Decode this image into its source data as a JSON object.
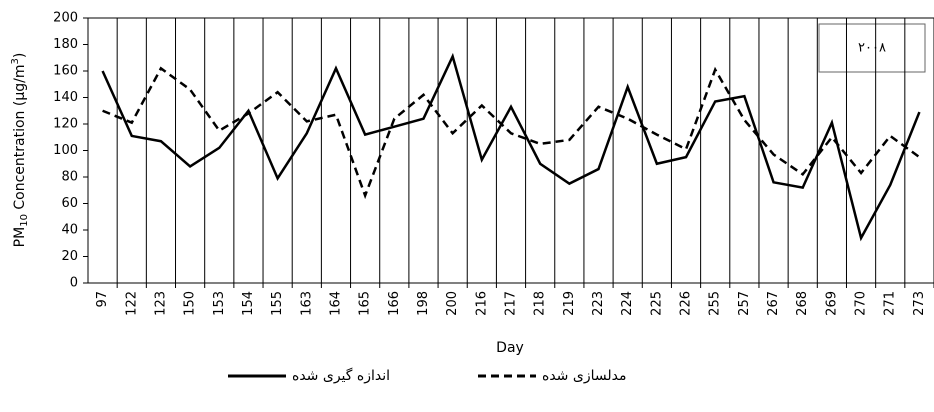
{
  "chart_data": {
    "type": "line",
    "y_label_parts": [
      "PM",
      "10",
      " Concentration (µg/m",
      "3",
      ")"
    ],
    "x_label": "Day",
    "annotation": "۲۰۰۸",
    "categories": [
      "97",
      "122",
      "123",
      "150",
      "153",
      "154",
      "155",
      "163",
      "164",
      "165",
      "166",
      "198",
      "200",
      "216",
      "217",
      "218",
      "219",
      "223",
      "224",
      "225",
      "226",
      "255",
      "257",
      "267",
      "268",
      "269",
      "270",
      "271",
      "273"
    ],
    "series": [
      {
        "name": "اندازه گیری شده",
        "color": "#000000",
        "dash": false,
        "values": [
          160,
          111,
          107,
          88,
          102,
          130,
          79,
          113,
          162,
          112,
          118,
          124,
          171,
          93,
          133,
          90,
          75,
          86,
          148,
          90,
          95,
          137,
          141,
          76,
          72,
          121,
          34,
          74,
          129
        ]
      },
      {
        "name": "مدلسازی شده",
        "color": "#000000",
        "dash": true,
        "values": [
          130,
          121,
          162,
          146,
          115,
          128,
          144,
          122,
          127,
          66,
          124,
          142,
          113,
          134,
          113,
          105,
          108,
          133,
          124,
          112,
          101,
          161,
          123,
          97,
          82,
          110,
          83,
          111,
          95
        ]
      }
    ],
    "ylim": [
      0,
      200
    ],
    "yticks": [
      0,
      20,
      40,
      60,
      80,
      100,
      120,
      140,
      160,
      180,
      200
    ]
  }
}
